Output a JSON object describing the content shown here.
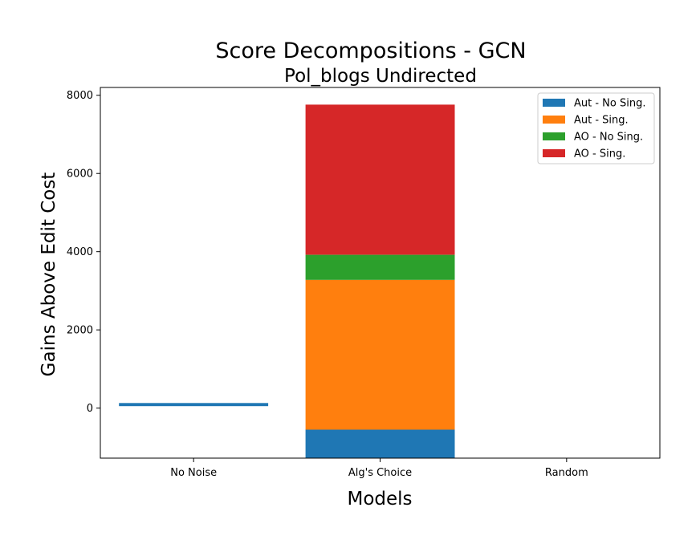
{
  "chart_data": {
    "type": "bar",
    "stacked": true,
    "title": "Score Decompositions - GCN",
    "subtitle": "Pol_blogs Undirected",
    "xlabel": "Models",
    "ylabel": "Gains Above Edit Cost",
    "categories": [
      "No Noise",
      "Alg's Choice",
      "Random"
    ],
    "ylim": [
      -1280,
      8200
    ],
    "yticks": [
      0,
      2000,
      4000,
      6000,
      8000
    ],
    "grid": false,
    "legend_position": "top-right",
    "series": [
      {
        "name": "Aut - No Sing.",
        "color": "#1f77b4",
        "segments": [
          [
            50,
            130
          ],
          [
            -1280,
            -550
          ],
          null
        ]
      },
      {
        "name": "Aut - Sing.",
        "color": "#ff7f0e",
        "segments": [
          null,
          [
            -550,
            3280
          ],
          null
        ]
      },
      {
        "name": "AO - No Sing.",
        "color": "#2ca02c",
        "segments": [
          null,
          [
            3280,
            3920
          ],
          null
        ]
      },
      {
        "name": "AO - Sing.",
        "color": "#d62728",
        "segments": [
          null,
          [
            3920,
            7760
          ],
          null
        ]
      }
    ]
  }
}
